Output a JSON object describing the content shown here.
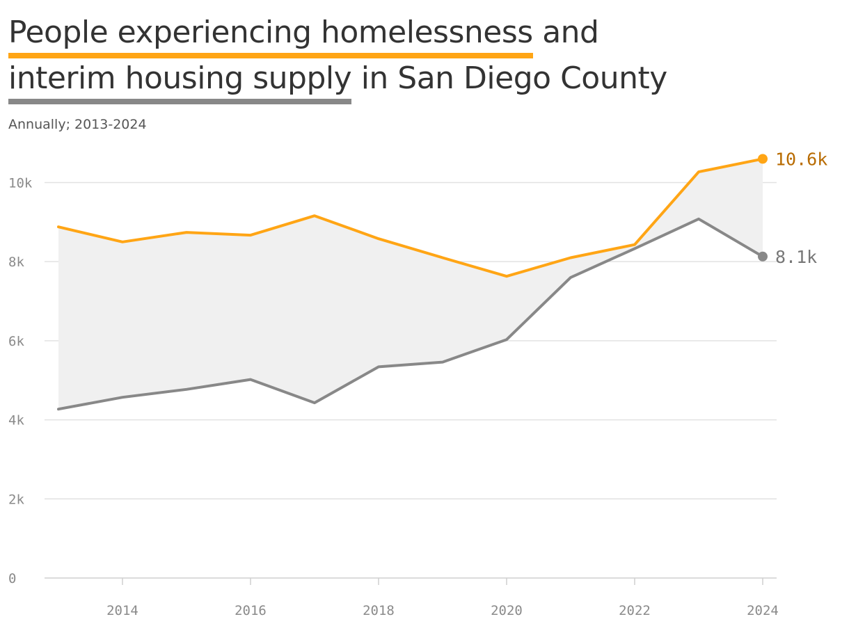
{
  "title": {
    "part1": "People experiencing homelessness",
    "part2": "and",
    "part3": "interim housing supply",
    "part4": "in San Diego County"
  },
  "subtitle": "Annually; 2013-2024",
  "colors": {
    "homeless": "#ffa515",
    "housing": "#888888",
    "gap_fill": "#f0f0f0",
    "grid": "#e2e2e2",
    "homeless_label": "#b86b00",
    "housing_label": "#777777"
  },
  "chart_data": {
    "type": "line",
    "x": [
      2013,
      2014,
      2015,
      2016,
      2017,
      2018,
      2019,
      2020,
      2021,
      2022,
      2023,
      2024
    ],
    "series": [
      {
        "key": "homeless",
        "values": [
          8880,
          8500,
          8740,
          8670,
          9160,
          8580,
          8100,
          7630,
          8100,
          8430,
          10270,
          10600
        ]
      },
      {
        "key": "housing",
        "values": [
          4270,
          4570,
          4770,
          5020,
          4430,
          5340,
          5460,
          6030,
          7600,
          8330,
          9080,
          8130
        ]
      }
    ],
    "xlim": [
      2013,
      2024
    ],
    "ylim": [
      0,
      10800
    ],
    "x_ticks": [
      2014,
      2016,
      2018,
      2020,
      2022,
      2024
    ],
    "x_tick_labels": [
      "2014",
      "2016",
      "2018",
      "2020",
      "2022",
      "2024"
    ],
    "y_ticks": [
      0,
      2000,
      4000,
      6000,
      8000,
      10000
    ],
    "y_tick_labels": [
      "0",
      "2k",
      "4k",
      "6k",
      "8k",
      "10k"
    ],
    "end_labels": {
      "homeless": "10.6k",
      "housing": "8.1k"
    },
    "grid": true,
    "gap_shaded": true
  }
}
